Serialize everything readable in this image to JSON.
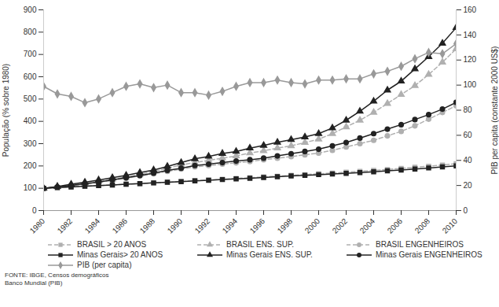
{
  "chart_data": {
    "type": "line",
    "y_label": "População (% sobre 1980)",
    "y2_label": "PIB per capita (constante 2000 US$)",
    "annotations": [
      "FONTE: IBGE, Censos demográficos",
      "Banco Mundial (PIB)"
    ],
    "x": [
      1980,
      1981,
      1982,
      1983,
      1984,
      1985,
      1986,
      1987,
      1988,
      1989,
      1990,
      1991,
      1992,
      1993,
      1994,
      1995,
      1996,
      1997,
      1998,
      1999,
      2000,
      2001,
      2002,
      2003,
      2004,
      2005,
      2006,
      2007,
      2008,
      2009,
      2010
    ],
    "xlim": [
      1980,
      2010
    ],
    "xticks": [
      1980,
      1982,
      1984,
      1986,
      1988,
      1990,
      1992,
      1994,
      1996,
      1998,
      2000,
      2002,
      2004,
      2006,
      2008,
      2010
    ],
    "ylim": [
      0,
      900
    ],
    "yticks": [
      0,
      100,
      200,
      300,
      400,
      500,
      600,
      700,
      800,
      900
    ],
    "y2lim": [
      0,
      160
    ],
    "y2ticks": [
      0,
      20,
      40,
      60,
      80,
      100,
      120,
      140,
      160
    ],
    "grid": false,
    "legend": "bottom",
    "series": [
      {
        "name": "BRASIL > 20 ANOS",
        "color": "#b0b0b0",
        "marker": "square",
        "line_style": "dashed",
        "values": [
          100,
          103,
          106,
          109,
          112,
          115,
          118,
          121,
          124,
          127,
          130,
          134,
          137,
          140,
          144,
          147,
          151,
          154,
          158,
          161,
          165,
          168,
          172,
          176,
          180,
          184,
          189,
          194,
          199,
          204,
          210
        ]
      },
      {
        "name": "BRASIL ENS. SUP.",
        "color": "#b0b0b0",
        "marker": "triangle",
        "line_style": "dashed",
        "values": [
          100,
          107,
          114,
          122,
          130,
          140,
          150,
          162,
          175,
          190,
          205,
          215,
          225,
          235,
          245,
          258,
          268,
          280,
          290,
          305,
          320,
          345,
          375,
          405,
          440,
          480,
          520,
          560,
          610,
          665,
          725
        ]
      },
      {
        "name": "BRASIL ENGENHEIROS",
        "color": "#b0b0b0",
        "marker": "circle",
        "line_style": "dashed",
        "values": [
          100,
          106,
          112,
          119,
          127,
          136,
          145,
          155,
          165,
          176,
          186,
          196,
          202,
          208,
          214,
          220,
          228,
          235,
          242,
          250,
          258,
          270,
          285,
          300,
          315,
          335,
          355,
          380,
          410,
          440,
          470
        ]
      },
      {
        "name": "Minas Gerais> 20 ANOS",
        "color": "#222222",
        "marker": "square",
        "line_style": "solid",
        "values": [
          100,
          103,
          106,
          109,
          112,
          115,
          118,
          121,
          124,
          127,
          130,
          133,
          136,
          139,
          142,
          145,
          148,
          152,
          155,
          158,
          161,
          164,
          167,
          170,
          174,
          178,
          182,
          186,
          191,
          196,
          200
        ]
      },
      {
        "name": "Minas Gerais ENS. SUP.",
        "color": "#222222",
        "marker": "triangle",
        "line_style": "solid",
        "values": [
          100,
          108,
          118,
          127,
          137,
          147,
          158,
          170,
          182,
          198,
          215,
          232,
          243,
          256,
          265,
          280,
          292,
          306,
          318,
          330,
          345,
          370,
          405,
          445,
          490,
          540,
          580,
          635,
          690,
          750,
          820
        ]
      },
      {
        "name": "Minas Gerais ENGENHEIROS",
        "color": "#222222",
        "marker": "circle",
        "line_style": "solid",
        "values": [
          100,
          106,
          113,
          120,
          128,
          138,
          147,
          157,
          168,
          180,
          190,
          202,
          208,
          215,
          222,
          228,
          235,
          245,
          255,
          265,
          275,
          290,
          305,
          325,
          345,
          365,
          385,
          408,
          430,
          455,
          485
        ]
      },
      {
        "name": "PIB (per capita)",
        "color": "#999999",
        "marker": "diamond",
        "line_style": "solid",
        "axis": "y2",
        "values": [
          99,
          93,
          91,
          86,
          89,
          94,
          99,
          101,
          98,
          100,
          94,
          94,
          92,
          95,
          99,
          102,
          102,
          104,
          102,
          101,
          104,
          104,
          105,
          105,
          109,
          111,
          115,
          121,
          126,
          125,
          133
        ]
      }
    ]
  }
}
